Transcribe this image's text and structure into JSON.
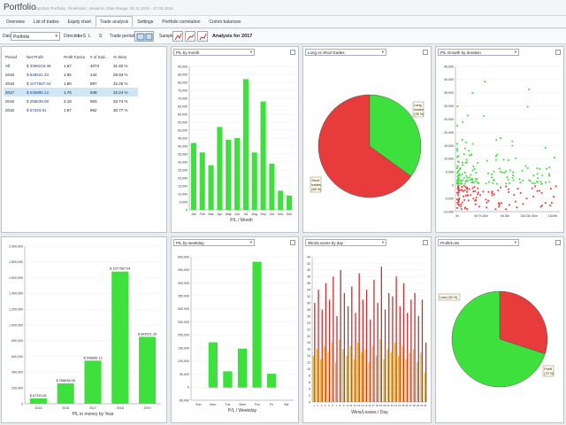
{
  "titlebar": {
    "app": "Portfolio",
    "sub": "Symbol: Portfolio, Timeframe: Jerasirre, Date Range: 02.11.2015 - 27.03.2019"
  },
  "tabs": [
    "Overview",
    "List of trades",
    "Equity chart",
    "Trade analysis",
    "Settings",
    "Portfolio correlation",
    "Comm balances"
  ],
  "active_tab": 3,
  "toolbar": {
    "data_label": "Data",
    "data_value": "Portfolio",
    "direction_label": "Direction",
    "direction_opts": [
      "L+S",
      "L",
      "S"
    ],
    "period_label": "Trade period by",
    "sample_label": "Sample",
    "heading": "Analysis for 2017"
  },
  "period_table": {
    "headers": [
      "Period",
      "Net Profit",
      "Profit Factor",
      "# of trad...",
      "% Wins"
    ],
    "rows": [
      [
        "All",
        "$ 3398219.38",
        "1.67",
        "4073",
        "31.82 %"
      ],
      [
        "2019",
        "$ 849521.33",
        "1.65",
        "242",
        "28.93 %"
      ],
      [
        "2018",
        "$ 1677687.04",
        "1.80",
        "997",
        "32.26 %"
      ],
      [
        "2017",
        "$ 546896.12",
        "1.76",
        "949",
        "32.24 %"
      ],
      [
        "2016",
        "$ 258638.08",
        "2.18",
        "993",
        "32.74 %"
      ],
      [
        "2015",
        "$ 67333.81",
        "1.67",
        "962",
        "30.77 %"
      ]
    ],
    "selected_row": 3
  },
  "panels": {
    "pl_month": {
      "dropdown": "P/L by month",
      "caption": "P/L / Month"
    },
    "long_short": {
      "dropdown": "Long vs Short trades"
    },
    "growth": {
      "dropdown": "P/L Growth by duration"
    },
    "pl_weekday": {
      "dropdown": "P/L by weekday",
      "caption": "P/L / Weekday"
    },
    "wins_day": {
      "dropdown": "Wins/Losses by day",
      "caption": "Wins/Losses / Day"
    },
    "profit_loss": {
      "dropdown": "Profit/Loss"
    },
    "pl_year": {
      "caption": "P/L in money by Year"
    }
  },
  "chart_data": [
    {
      "type": "bar",
      "id": "pl_year",
      "categories": [
        "2015",
        "2016",
        "2017",
        "2018",
        "2019"
      ],
      "values": [
        67333.81,
        258638.08,
        546896.12,
        1677687.04,
        849521.33
      ],
      "data_labels": [
        "$ 67333.81",
        "$ 258638.08",
        "$ 546896.12",
        "$ 1677687.04",
        "$ 849521.33"
      ],
      "ylim": [
        0,
        2000000
      ],
      "yticks": [
        "0",
        "200,000",
        "400,000",
        "600,000",
        "800,000",
        "1,000,000",
        "1,200,000",
        "1,400,000",
        "1,600,000",
        "1,800,000",
        "2,000,000"
      ],
      "xlabel": "P/L in money by Year",
      "color": "#3ee03e"
    },
    {
      "type": "bar",
      "id": "pl_month",
      "categories": [
        "Jan",
        "Feb",
        "Mar",
        "Apr",
        "May",
        "Jun",
        "Jul",
        "Aug",
        "Sep",
        "Oct",
        "Nov",
        "Dec"
      ],
      "values": [
        42000,
        36000,
        28000,
        52000,
        44000,
        45000,
        82000,
        36000,
        68000,
        29000,
        12000,
        9000
      ],
      "ylim": [
        0,
        90000
      ],
      "yticks": [
        "0",
        "5,000",
        "10,000",
        "15,000",
        "20,000",
        "25,000",
        "30,000",
        "35,000",
        "40,000",
        "45,000",
        "50,000",
        "55,000",
        "60,000",
        "65,000",
        "70,000",
        "75,000",
        "80,000",
        "85,000",
        "90,000"
      ],
      "xlabel": "P/L / Month",
      "color": "#3ee03e"
    },
    {
      "type": "pie",
      "id": "long_short",
      "slices": [
        {
          "name": "Short trades",
          "label": [
            "Short",
            "trades",
            "(65 %)"
          ],
          "value": 65,
          "color": "#e83b3b"
        },
        {
          "name": "Long trades",
          "label": [
            "Long",
            "trades",
            "(35 %)"
          ],
          "value": 35,
          "color": "#3ee03e"
        }
      ]
    },
    {
      "type": "scatter",
      "id": "growth",
      "ylim": [
        -10000,
        45000
      ],
      "yticks": [
        "-10,000",
        "-5,000",
        "0",
        "5,000",
        "10,000",
        "15,000",
        "20,000",
        "25,000",
        "30,000",
        "35,000",
        "40,000",
        "45,000"
      ],
      "xticks": [
        "0s",
        "3d 7h 30m",
        "6d 15h",
        "10d 22h 30m",
        "14d 6h"
      ],
      "colors": {
        "win": "#3ee03e",
        "loss": "#e83b3b"
      }
    },
    {
      "type": "bar",
      "id": "pl_weekday",
      "categories": [
        "Sun",
        "Mon",
        "Tue",
        "Wed",
        "Thu",
        "Fri",
        "Sat"
      ],
      "values": [
        0,
        180000,
        65000,
        155000,
        500000,
        55000,
        0
      ],
      "ylim": [
        -50000,
        520000
      ],
      "yticks": [
        "-50,000",
        "0",
        "50,000",
        "100,000",
        "150,000",
        "200,000",
        "250,000",
        "300,000",
        "350,000",
        "400,000",
        "450,000",
        "500,000"
      ],
      "xlabel": "P/L / Weekday",
      "color": "#3ee03e"
    },
    {
      "type": "bar",
      "id": "wins_day",
      "categories": [
        "1",
        "2",
        "3",
        "4",
        "5",
        "6",
        "7",
        "8",
        "9",
        "10",
        "11",
        "12",
        "13",
        "14",
        "15",
        "16",
        "17",
        "18",
        "19",
        "20",
        "21",
        "22",
        "23",
        "24",
        "25",
        "26",
        "27",
        "28",
        "29",
        "30",
        "31"
      ],
      "series": [
        {
          "name": "Wins",
          "color": "#e0c020",
          "values": [
            14,
            16,
            13,
            17,
            15,
            18,
            12,
            19,
            16,
            14,
            17,
            13,
            18,
            15,
            16,
            12,
            17,
            14,
            19,
            13,
            16,
            15,
            18,
            14,
            17,
            13,
            15,
            16,
            12,
            15,
            9
          ]
        },
        {
          "name": "Losses",
          "color": "#c43232",
          "values": [
            30,
            34,
            28,
            36,
            31,
            38,
            26,
            40,
            33,
            29,
            35,
            27,
            39,
            31,
            34,
            25,
            37,
            30,
            41,
            28,
            33,
            32,
            38,
            29,
            36,
            27,
            31,
            33,
            26,
            31,
            18
          ]
        }
      ],
      "ylim": [
        0,
        44
      ],
      "yticks": [
        "0",
        "2",
        "4",
        "6",
        "8",
        "10",
        "12",
        "14",
        "16",
        "18",
        "20",
        "22",
        "24",
        "26",
        "28",
        "30",
        "32",
        "34",
        "36",
        "38",
        "40",
        "42",
        "44"
      ],
      "xlabel": "Wins/Losses / Day"
    },
    {
      "type": "pie",
      "id": "profit_loss",
      "slices": [
        {
          "name": "Loss",
          "label": [
            "Loss (30 %)"
          ],
          "value": 30,
          "color": "#e83b3b"
        },
        {
          "name": "Profit",
          "label": [
            "Profit",
            "(70 %)"
          ],
          "value": 70,
          "color": "#3ee03e"
        }
      ]
    }
  ]
}
